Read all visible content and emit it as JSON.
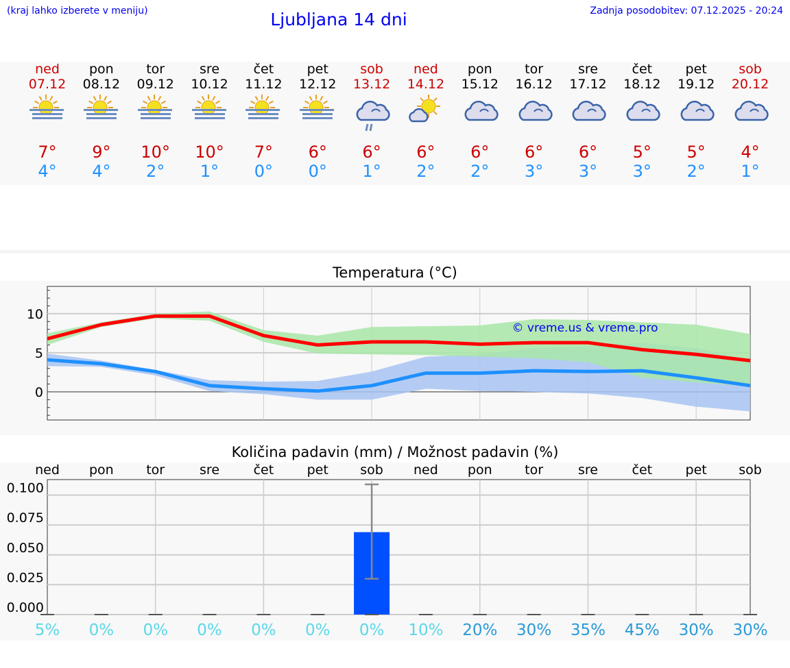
{
  "header": {
    "hint": "(kraj lahko izberete v meniju)",
    "title": "Ljubljana 14 dni",
    "updated": "Zadnja posodobitev: 07.12.2025 - 20:24"
  },
  "colors": {
    "weekend": "#cc0000",
    "high": "#cc0000",
    "low": "#1e90ff",
    "max_line": "#ff0000",
    "min_line": "#1e90ff",
    "max_band": "#a8e6a8",
    "min_band": "#a8c4f2",
    "bar": "#0050ff",
    "pct_low": "#5ad8e8",
    "pct_high": "#2a9ad8",
    "copyright": "#0000ee"
  },
  "days": [
    {
      "name": "ned",
      "date": "07.12",
      "weekend": true,
      "icon": "sun-fog-icon",
      "high": "7°",
      "low": "4°"
    },
    {
      "name": "pon",
      "date": "08.12",
      "weekend": false,
      "icon": "sun-fog-icon",
      "high": "9°",
      "low": "4°"
    },
    {
      "name": "tor",
      "date": "09.12",
      "weekend": false,
      "icon": "sun-fog-icon",
      "high": "10°",
      "low": "2°"
    },
    {
      "name": "sre",
      "date": "10.12",
      "weekend": false,
      "icon": "sun-fog-icon",
      "high": "10°",
      "low": "1°"
    },
    {
      "name": "čet",
      "date": "11.12",
      "weekend": false,
      "icon": "sun-fog-icon",
      "high": "7°",
      "low": "0°"
    },
    {
      "name": "pet",
      "date": "12.12",
      "weekend": false,
      "icon": "sun-fog-icon",
      "high": "6°",
      "low": "0°"
    },
    {
      "name": "sob",
      "date": "13.12",
      "weekend": true,
      "icon": "cloud-rain-icon",
      "high": "6°",
      "low": "1°"
    },
    {
      "name": "ned",
      "date": "14.12",
      "weekend": true,
      "icon": "sun-cloud-icon",
      "high": "6°",
      "low": "2°"
    },
    {
      "name": "pon",
      "date": "15.12",
      "weekend": false,
      "icon": "cloud-icon",
      "high": "6°",
      "low": "2°"
    },
    {
      "name": "tor",
      "date": "16.12",
      "weekend": false,
      "icon": "cloud-icon",
      "high": "6°",
      "low": "3°"
    },
    {
      "name": "sre",
      "date": "17.12",
      "weekend": false,
      "icon": "cloud-icon",
      "high": "6°",
      "low": "3°"
    },
    {
      "name": "čet",
      "date": "18.12",
      "weekend": false,
      "icon": "cloud-icon",
      "high": "5°",
      "low": "3°"
    },
    {
      "name": "pet",
      "date": "19.12",
      "weekend": false,
      "icon": "cloud-icon",
      "high": "5°",
      "low": "2°"
    },
    {
      "name": "sob",
      "date": "20.12",
      "weekend": true,
      "icon": "cloud-icon",
      "high": "4°",
      "low": "1°"
    }
  ],
  "chart_data": [
    {
      "type": "line",
      "title": "Temperatura (°C)",
      "annotation": "© vreme.us & vreme.pro",
      "ylim": [
        -3.6,
        13.5
      ],
      "yticks": [
        0,
        5,
        10
      ],
      "grid": true,
      "series": [
        {
          "values": [
            6.8,
            8.6,
            9.7,
            9.7,
            7.2,
            6.0,
            6.4,
            6.4,
            6.1,
            6.3,
            6.3,
            5.4,
            4.8,
            4.0
          ],
          "band_low": [
            6.0,
            8.3,
            9.4,
            9.1,
            6.4,
            4.9,
            4.8,
            4.7,
            4.5,
            4.3,
            3.8,
            1.8,
            1.2,
            0.7
          ],
          "band_high": [
            7.5,
            8.9,
            10.0,
            10.3,
            7.9,
            7.2,
            8.3,
            8.4,
            8.5,
            9.3,
            9.2,
            8.9,
            8.6,
            7.4
          ]
        },
        {
          "values": [
            4.1,
            3.6,
            2.6,
            0.8,
            0.4,
            0.1,
            0.8,
            2.4,
            2.4,
            2.7,
            2.6,
            2.7,
            1.8,
            0.8
          ],
          "band_low": [
            3.3,
            3.2,
            2.1,
            0.1,
            -0.3,
            -1.0,
            -1.0,
            0.4,
            0.1,
            0.0,
            -0.2,
            -0.8,
            -1.9,
            -2.5
          ],
          "band_high": [
            4.9,
            4.0,
            2.8,
            1.5,
            1.3,
            1.4,
            2.6,
            4.5,
            4.8,
            5.6,
            5.8,
            6.3,
            5.6,
            4.0
          ]
        }
      ]
    },
    {
      "type": "bar",
      "title": "Količina padavin (mm) / Možnost padavin (%)",
      "categories": [
        "ned",
        "pon",
        "tor",
        "sre",
        "čet",
        "pet",
        "sob",
        "ned",
        "pon",
        "tor",
        "sre",
        "čet",
        "pet",
        "sob"
      ],
      "values": [
        0,
        0,
        0,
        0,
        0,
        0,
        0.069,
        0,
        0,
        0,
        0,
        0,
        0,
        0
      ],
      "error_low": [
        null,
        null,
        null,
        null,
        null,
        null,
        0.03,
        null,
        null,
        null,
        null,
        null,
        null,
        null
      ],
      "error_high": [
        null,
        null,
        null,
        null,
        null,
        null,
        0.109,
        null,
        null,
        null,
        null,
        null,
        null,
        null
      ],
      "probability": [
        "5%",
        "0%",
        "0%",
        "0%",
        "0%",
        "0%",
        "0%",
        "10%",
        "20%",
        "30%",
        "35%",
        "45%",
        "30%",
        "30%"
      ],
      "ylim": [
        0,
        0.113
      ],
      "yticks": [
        "0.000",
        "0.025",
        "0.050",
        "0.075",
        "0.100"
      ],
      "grid": true
    }
  ]
}
